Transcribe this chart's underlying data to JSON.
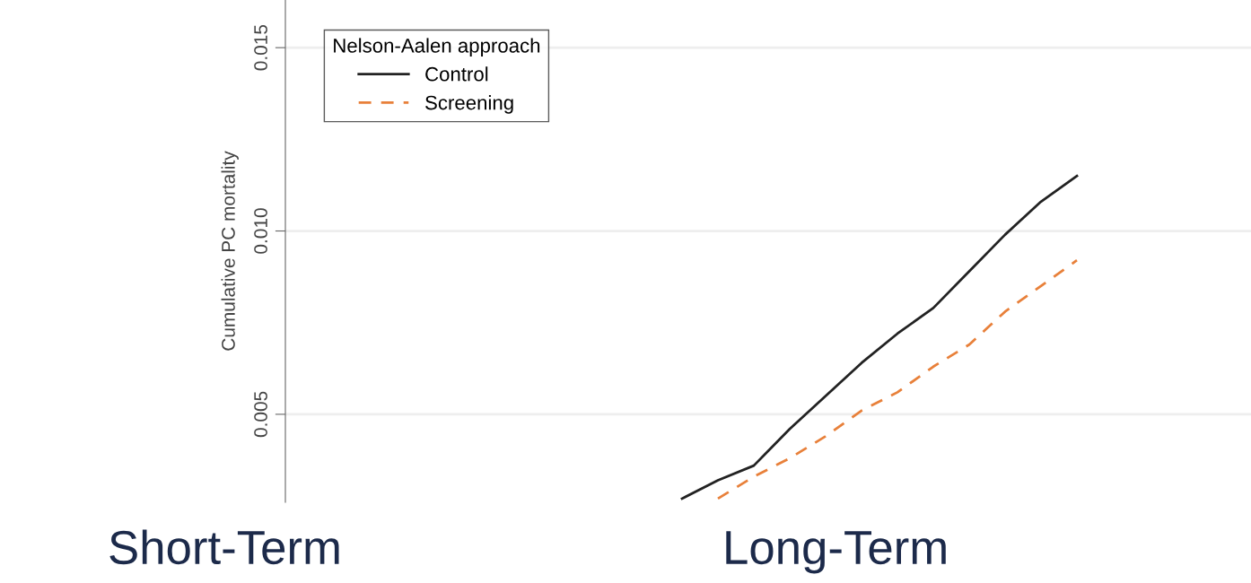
{
  "chart_data": {
    "type": "line",
    "ylabel": "Cumulative PC mortality",
    "legend_title": "Nelson-Aalen approach",
    "legend": "top left",
    "grid": "y",
    "tick_labels": "y",
    "categories": [
      null,
      null,
      null,
      null,
      null,
      null,
      null,
      null,
      null,
      null,
      null,
      null,
      null,
      null,
      null,
      null,
      null,
      null,
      null,
      null,
      null,
      null,
      null,
      null,
      null,
      null,
      null
    ],
    "ylim": [
      0.0026,
      0.0163
    ],
    "yticks": [
      {
        "value": 0.005,
        "label": "0.005"
      },
      {
        "value": 0.01,
        "label": "0.010"
      },
      {
        "value": 0.015,
        "label": "0.015"
      }
    ],
    "series": [
      {
        "name": "Control",
        "color": "#222222",
        "line_style": "solid",
        "values": [
          null,
          null,
          null,
          null,
          null,
          null,
          null,
          null,
          null,
          null,
          null,
          0.0027,
          0.0032,
          0.0036,
          0.0046,
          0.0055,
          0.0064,
          0.0072,
          0.0079,
          0.0089,
          0.0099,
          0.0108,
          0.0115,
          null,
          null,
          null,
          null
        ]
      },
      {
        "name": "Screening",
        "color": "#e8803a",
        "line_style": "dashed",
        "values": [
          null,
          null,
          null,
          null,
          null,
          null,
          null,
          null,
          null,
          null,
          null,
          null,
          0.0027,
          0.0033,
          0.0038,
          0.0044,
          0.0051,
          0.0056,
          0.0063,
          0.0069,
          0.0078,
          0.0085,
          0.0092,
          null,
          null,
          null,
          null
        ]
      }
    ],
    "annotations": [
      "Short-Term",
      "Long-Term"
    ]
  }
}
